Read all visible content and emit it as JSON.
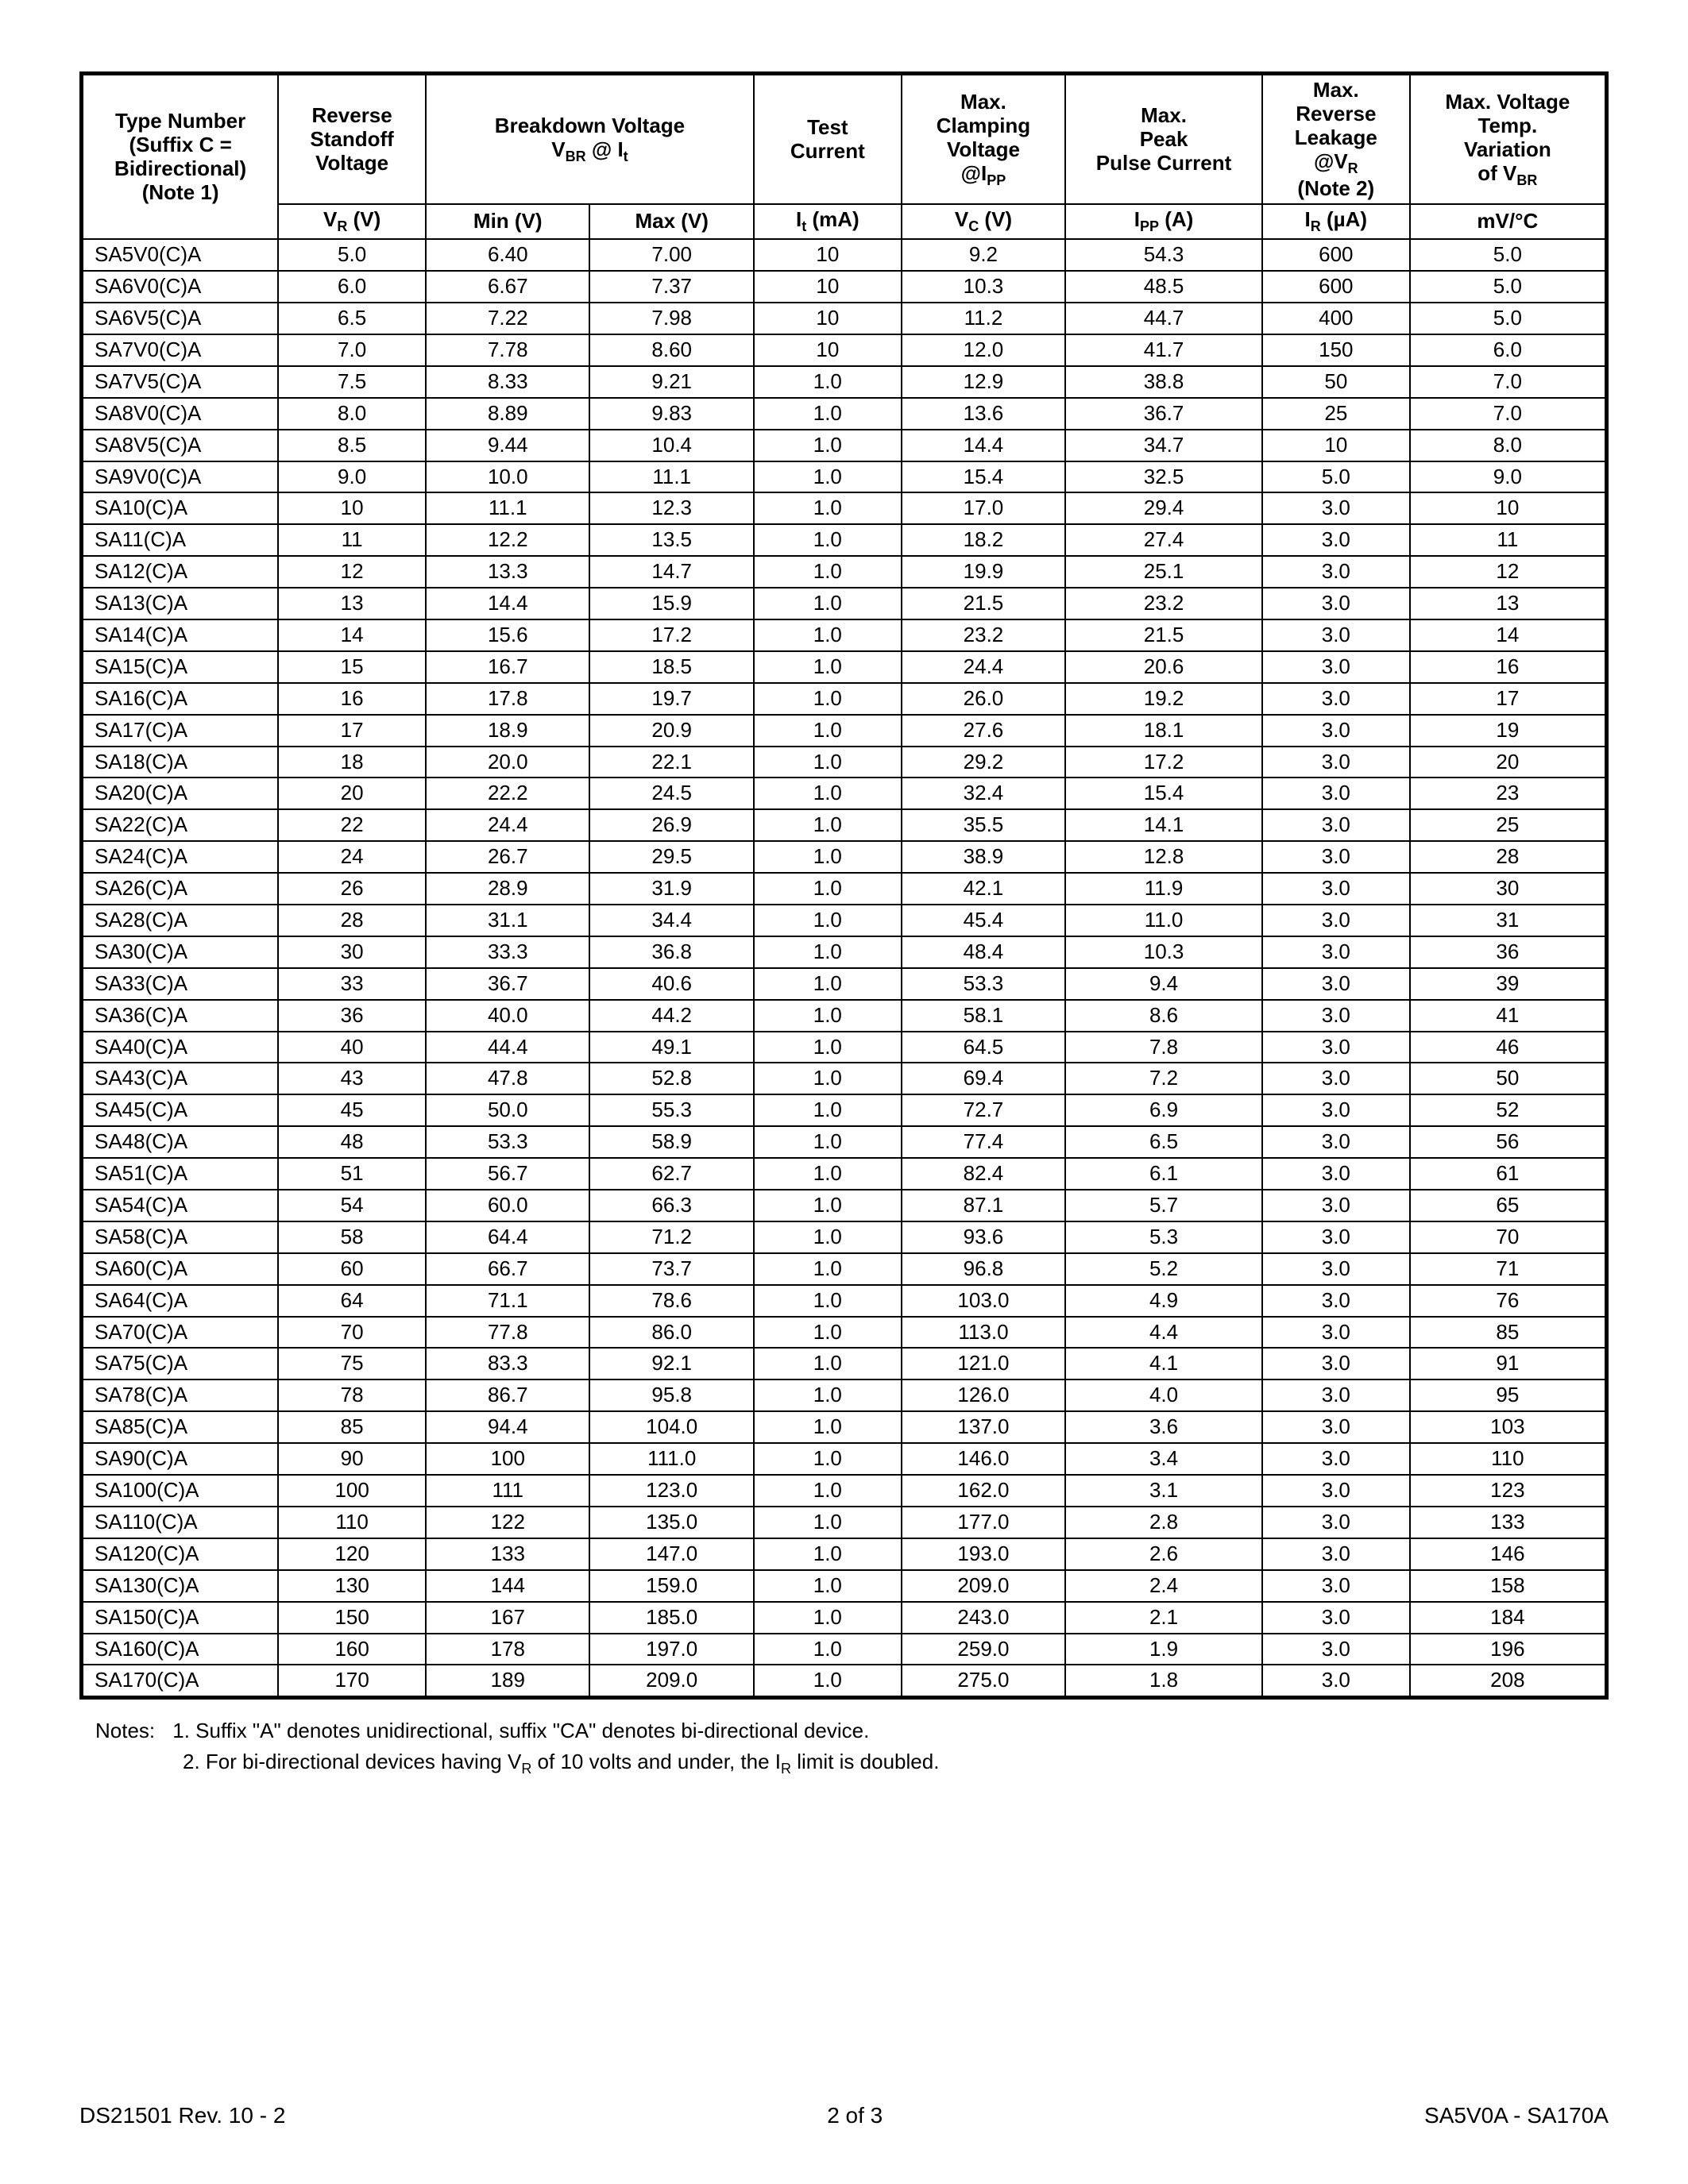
{
  "headers_row1": {
    "c0": "Type Number\n(Suffix C = Bidirectional)\n(Note 1)",
    "c1": "Reverse Standoff Voltage",
    "c23": "Breakdown Voltage\nV_BR @ I_t",
    "c4": "Test Current",
    "c5": "Max. Clamping Voltage @I_PP",
    "c6": "Max.\nPeak\nPulse Current",
    "c7": "Max. Reverse Leakage @V_R (Note 2)",
    "c8": "Max. Voltage Temp. Variation of V_BR"
  },
  "headers_row2": {
    "c1": "V_R (V)",
    "c2": "Min (V)",
    "c3": "Max (V)",
    "c4": "I_t (mA)",
    "c5": "V_C (V)",
    "c6": "I_PP (A)",
    "c7": "I_R (µA)",
    "c8": "mV/°C"
  },
  "rows": [
    [
      "SA5V0(C)A",
      "5.0",
      "6.40",
      "7.00",
      "10",
      "9.2",
      "54.3",
      "600",
      "5.0"
    ],
    [
      "SA6V0(C)A",
      "6.0",
      "6.67",
      "7.37",
      "10",
      "10.3",
      "48.5",
      "600",
      "5.0"
    ],
    [
      "SA6V5(C)A",
      "6.5",
      "7.22",
      "7.98",
      "10",
      "11.2",
      "44.7",
      "400",
      "5.0"
    ],
    [
      "SA7V0(C)A",
      "7.0",
      "7.78",
      "8.60",
      "10",
      "12.0",
      "41.7",
      "150",
      "6.0"
    ],
    [
      "SA7V5(C)A",
      "7.5",
      "8.33",
      "9.21",
      "1.0",
      "12.9",
      "38.8",
      "50",
      "7.0"
    ],
    [
      "SA8V0(C)A",
      "8.0",
      "8.89",
      "9.83",
      "1.0",
      "13.6",
      "36.7",
      "25",
      "7.0"
    ],
    [
      "SA8V5(C)A",
      "8.5",
      "9.44",
      "10.4",
      "1.0",
      "14.4",
      "34.7",
      "10",
      "8.0"
    ],
    [
      "SA9V0(C)A",
      "9.0",
      "10.0",
      "11.1",
      "1.0",
      "15.4",
      "32.5",
      "5.0",
      "9.0"
    ],
    [
      "SA10(C)A",
      "10",
      "11.1",
      "12.3",
      "1.0",
      "17.0",
      "29.4",
      "3.0",
      "10"
    ],
    [
      "SA11(C)A",
      "11",
      "12.2",
      "13.5",
      "1.0",
      "18.2",
      "27.4",
      "3.0",
      "11"
    ],
    [
      "SA12(C)A",
      "12",
      "13.3",
      "14.7",
      "1.0",
      "19.9",
      "25.1",
      "3.0",
      "12"
    ],
    [
      "SA13(C)A",
      "13",
      "14.4",
      "15.9",
      "1.0",
      "21.5",
      "23.2",
      "3.0",
      "13"
    ],
    [
      "SA14(C)A",
      "14",
      "15.6",
      "17.2",
      "1.0",
      "23.2",
      "21.5",
      "3.0",
      "14"
    ],
    [
      "SA15(C)A",
      "15",
      "16.7",
      "18.5",
      "1.0",
      "24.4",
      "20.6",
      "3.0",
      "16"
    ],
    [
      "SA16(C)A",
      "16",
      "17.8",
      "19.7",
      "1.0",
      "26.0",
      "19.2",
      "3.0",
      "17"
    ],
    [
      "SA17(C)A",
      "17",
      "18.9",
      "20.9",
      "1.0",
      "27.6",
      "18.1",
      "3.0",
      "19"
    ],
    [
      "SA18(C)A",
      "18",
      "20.0",
      "22.1",
      "1.0",
      "29.2",
      "17.2",
      "3.0",
      "20"
    ],
    [
      "SA20(C)A",
      "20",
      "22.2",
      "24.5",
      "1.0",
      "32.4",
      "15.4",
      "3.0",
      "23"
    ],
    [
      "SA22(C)A",
      "22",
      "24.4",
      "26.9",
      "1.0",
      "35.5",
      "14.1",
      "3.0",
      "25"
    ],
    [
      "SA24(C)A",
      "24",
      "26.7",
      "29.5",
      "1.0",
      "38.9",
      "12.8",
      "3.0",
      "28"
    ],
    [
      "SA26(C)A",
      "26",
      "28.9",
      "31.9",
      "1.0",
      "42.1",
      "11.9",
      "3.0",
      "30"
    ],
    [
      "SA28(C)A",
      "28",
      "31.1",
      "34.4",
      "1.0",
      "45.4",
      "11.0",
      "3.0",
      "31"
    ],
    [
      "SA30(C)A",
      "30",
      "33.3",
      "36.8",
      "1.0",
      "48.4",
      "10.3",
      "3.0",
      "36"
    ],
    [
      "SA33(C)A",
      "33",
      "36.7",
      "40.6",
      "1.0",
      "53.3",
      "9.4",
      "3.0",
      "39"
    ],
    [
      "SA36(C)A",
      "36",
      "40.0",
      "44.2",
      "1.0",
      "58.1",
      "8.6",
      "3.0",
      "41"
    ],
    [
      "SA40(C)A",
      "40",
      "44.4",
      "49.1",
      "1.0",
      "64.5",
      "7.8",
      "3.0",
      "46"
    ],
    [
      "SA43(C)A",
      "43",
      "47.8",
      "52.8",
      "1.0",
      "69.4",
      "7.2",
      "3.0",
      "50"
    ],
    [
      "SA45(C)A",
      "45",
      "50.0",
      "55.3",
      "1.0",
      "72.7",
      "6.9",
      "3.0",
      "52"
    ],
    [
      "SA48(C)A",
      "48",
      "53.3",
      "58.9",
      "1.0",
      "77.4",
      "6.5",
      "3.0",
      "56"
    ],
    [
      "SA51(C)A",
      "51",
      "56.7",
      "62.7",
      "1.0",
      "82.4",
      "6.1",
      "3.0",
      "61"
    ],
    [
      "SA54(C)A",
      "54",
      "60.0",
      "66.3",
      "1.0",
      "87.1",
      "5.7",
      "3.0",
      "65"
    ],
    [
      "SA58(C)A",
      "58",
      "64.4",
      "71.2",
      "1.0",
      "93.6",
      "5.3",
      "3.0",
      "70"
    ],
    [
      "SA60(C)A",
      "60",
      "66.7",
      "73.7",
      "1.0",
      "96.8",
      "5.2",
      "3.0",
      "71"
    ],
    [
      "SA64(C)A",
      "64",
      "71.1",
      "78.6",
      "1.0",
      "103.0",
      "4.9",
      "3.0",
      "76"
    ],
    [
      "SA70(C)A",
      "70",
      "77.8",
      "86.0",
      "1.0",
      "113.0",
      "4.4",
      "3.0",
      "85"
    ],
    [
      "SA75(C)A",
      "75",
      "83.3",
      "92.1",
      "1.0",
      "121.0",
      "4.1",
      "3.0",
      "91"
    ],
    [
      "SA78(C)A",
      "78",
      "86.7",
      "95.8",
      "1.0",
      "126.0",
      "4.0",
      "3.0",
      "95"
    ],
    [
      "SA85(C)A",
      "85",
      "94.4",
      "104.0",
      "1.0",
      "137.0",
      "3.6",
      "3.0",
      "103"
    ],
    [
      "SA90(C)A",
      "90",
      "100",
      "111.0",
      "1.0",
      "146.0",
      "3.4",
      "3.0",
      "110"
    ],
    [
      "SA100(C)A",
      "100",
      "111",
      "123.0",
      "1.0",
      "162.0",
      "3.1",
      "3.0",
      "123"
    ],
    [
      "SA110(C)A",
      "110",
      "122",
      "135.0",
      "1.0",
      "177.0",
      "2.8",
      "3.0",
      "133"
    ],
    [
      "SA120(C)A",
      "120",
      "133",
      "147.0",
      "1.0",
      "193.0",
      "2.6",
      "3.0",
      "146"
    ],
    [
      "SA130(C)A",
      "130",
      "144",
      "159.0",
      "1.0",
      "209.0",
      "2.4",
      "3.0",
      "158"
    ],
    [
      "SA150(C)A",
      "150",
      "167",
      "185.0",
      "1.0",
      "243.0",
      "2.1",
      "3.0",
      "184"
    ],
    [
      "SA160(C)A",
      "160",
      "178",
      "197.0",
      "1.0",
      "259.0",
      "1.9",
      "3.0",
      "196"
    ],
    [
      "SA170(C)A",
      "170",
      "189",
      "209.0",
      "1.0",
      "275.0",
      "1.8",
      "3.0",
      "208"
    ]
  ],
  "notes": {
    "label": "Notes:",
    "n1": "1. Suffix \"A\" denotes unidirectional, suffix \"CA\" denotes bi-directional device.",
    "n2": "2. For bi-directional devices having V_R of 10 volts and under, the I_R limit is doubled."
  },
  "footer": {
    "left": "DS21501 Rev. 10 - 2",
    "center": "2 of 3",
    "right": "SA5V0A - SA170A"
  }
}
